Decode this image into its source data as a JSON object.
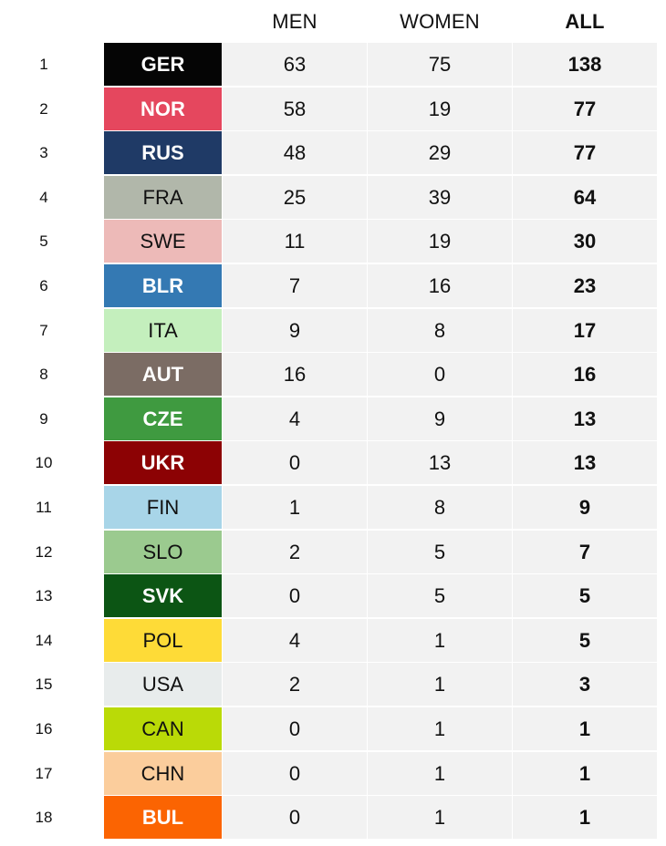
{
  "header": {
    "men": "MEN",
    "women": "WOMEN",
    "all": "ALL"
  },
  "rows": [
    {
      "rank": "1",
      "country": "GER",
      "bg": "#050505",
      "text": "light",
      "men": "63",
      "women": "75",
      "all": "138"
    },
    {
      "rank": "2",
      "country": "NOR",
      "bg": "#e5475e",
      "text": "light",
      "men": "58",
      "women": "19",
      "all": "77"
    },
    {
      "rank": "3",
      "country": "RUS",
      "bg": "#1f3a66",
      "text": "light",
      "men": "48",
      "women": "29",
      "all": "77"
    },
    {
      "rank": "4",
      "country": "FRA",
      "bg": "#b1b7aa",
      "text": "dark",
      "men": "25",
      "women": "39",
      "all": "64"
    },
    {
      "rank": "5",
      "country": "SWE",
      "bg": "#edbab8",
      "text": "dark",
      "men": "11",
      "women": "19",
      "all": "30"
    },
    {
      "rank": "6",
      "country": "BLR",
      "bg": "#3479b3",
      "text": "light",
      "men": "7",
      "women": "16",
      "all": "23"
    },
    {
      "rank": "7",
      "country": "ITA",
      "bg": "#c4efbd",
      "text": "dark",
      "men": "9",
      "women": "8",
      "all": "17"
    },
    {
      "rank": "8",
      "country": "AUT",
      "bg": "#7b6c64",
      "text": "light",
      "men": "16",
      "women": "0",
      "all": "16"
    },
    {
      "rank": "9",
      "country": "CZE",
      "bg": "#3f9a40",
      "text": "light",
      "men": "4",
      "women": "9",
      "all": "13"
    },
    {
      "rank": "10",
      "country": "UKR",
      "bg": "#8c0204",
      "text": "light",
      "men": "0",
      "women": "13",
      "all": "13"
    },
    {
      "rank": "11",
      "country": "FIN",
      "bg": "#a8d5e8",
      "text": "dark",
      "men": "1",
      "women": "8",
      "all": "9"
    },
    {
      "rank": "12",
      "country": "SLO",
      "bg": "#9bca8f",
      "text": "dark",
      "men": "2",
      "women": "5",
      "all": "7"
    },
    {
      "rank": "13",
      "country": "SVK",
      "bg": "#0c5514",
      "text": "light",
      "men": "0",
      "women": "5",
      "all": "5"
    },
    {
      "rank": "14",
      "country": "POL",
      "bg": "#fedb37",
      "text": "dark",
      "men": "4",
      "women": "1",
      "all": "5"
    },
    {
      "rank": "15",
      "country": "USA",
      "bg": "#e8ecec",
      "text": "dark",
      "men": "2",
      "women": "1",
      "all": "3"
    },
    {
      "rank": "16",
      "country": "CAN",
      "bg": "#bada07",
      "text": "dark",
      "men": "0",
      "women": "1",
      "all": "1"
    },
    {
      "rank": "17",
      "country": "CHN",
      "bg": "#fbcd9c",
      "text": "dark",
      "men": "0",
      "women": "1",
      "all": "1"
    },
    {
      "rank": "18",
      "country": "BUL",
      "bg": "#fb6402",
      "text": "light",
      "men": "0",
      "women": "1",
      "all": "1"
    }
  ]
}
